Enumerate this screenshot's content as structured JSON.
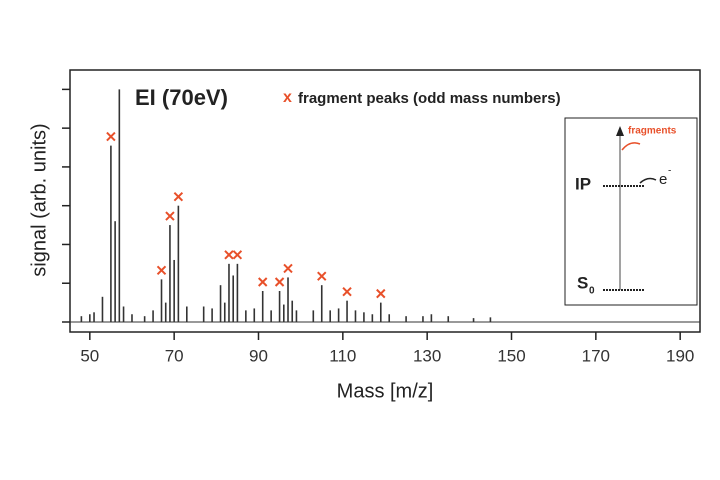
{
  "chart_data": {
    "type": "spectrum",
    "title": "EI (70eV)",
    "legend_marker": "x",
    "legend_label": "fragment peaks (odd mass numbers)",
    "x_label": "Mass [m/z]",
    "y_label": "signal (arb. units)",
    "x": [
      48,
      50,
      51,
      53,
      55,
      56,
      57,
      58,
      60,
      63,
      65,
      67,
      68,
      69,
      70,
      71,
      73,
      77,
      79,
      81,
      82,
      83,
      84,
      85,
      87,
      89,
      91,
      93,
      95,
      96,
      97,
      98,
      99,
      103,
      105,
      107,
      109,
      111,
      113,
      115,
      117,
      119,
      121,
      125,
      129,
      131,
      135,
      141,
      145
    ],
    "values": [
      0.15,
      0.2,
      0.25,
      0.65,
      4.55,
      2.6,
      6.0,
      0.4,
      0.2,
      0.15,
      0.3,
      1.1,
      0.5,
      2.5,
      1.6,
      3.0,
      0.4,
      0.4,
      0.35,
      0.95,
      0.5,
      1.5,
      1.2,
      1.5,
      0.3,
      0.35,
      0.8,
      0.3,
      0.8,
      0.45,
      1.15,
      0.55,
      0.3,
      0.3,
      0.95,
      0.3,
      0.35,
      0.55,
      0.3,
      0.25,
      0.2,
      0.5,
      0.2,
      0.15,
      0.15,
      0.2,
      0.15,
      0.1,
      0.12
    ],
    "color": "#333333",
    "marker_color": "#e8502a",
    "fragment_peaks": [
      55,
      67,
      69,
      71,
      83,
      85,
      91,
      95,
      97,
      105,
      111,
      119
    ],
    "xlim": [
      45.3,
      194.7
    ],
    "xticks": [
      50,
      70,
      90,
      110,
      130,
      150,
      170,
      190
    ],
    "ylim": [
      0,
      6.5
    ],
    "yticks": [
      0,
      1,
      2,
      3,
      4,
      5,
      6
    ],
    "inset": {
      "fragments": "fragments",
      "ip": "IP",
      "electron": "e",
      "electron_charge": "-",
      "ground": "S",
      "ground_index": "0"
    }
  }
}
